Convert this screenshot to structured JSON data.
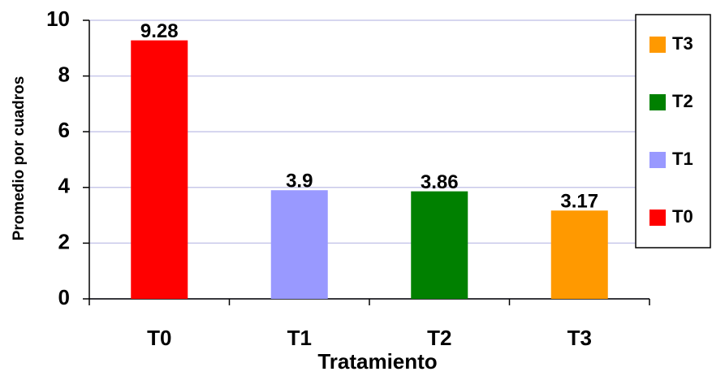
{
  "chart_data": {
    "type": "bar",
    "categories": [
      "T0",
      "T1",
      "T2",
      "T3"
    ],
    "values": [
      9.28,
      3.9,
      3.86,
      3.17
    ],
    "colors": [
      "#ff0000",
      "#9999ff",
      "#008000",
      "#ff9900"
    ],
    "ylim": [
      0,
      10
    ],
    "yticks": [
      0,
      2,
      4,
      6,
      8,
      10
    ],
    "grid": true,
    "xlabel": "Tratamiento",
    "ylabel": "Promedio por cuadros",
    "legend": "right"
  }
}
